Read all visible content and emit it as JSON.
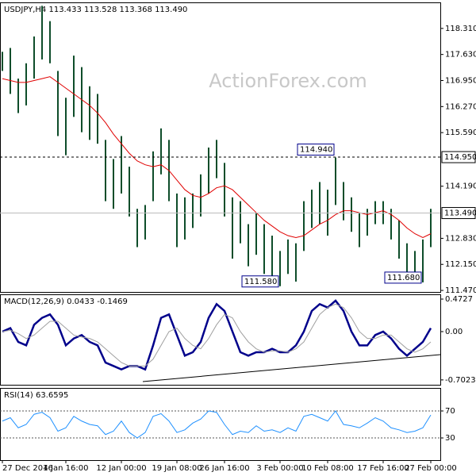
{
  "chart_data": [
    {
      "type": "ohlc",
      "header": "USDJPY,H4  113.433 113.528 113.368 113.490",
      "watermark": "ActionForex.com",
      "color": "#0e4d2a",
      "high": [
        117.7,
        117.8,
        117.0,
        117.4,
        118.1,
        118.9,
        118.5,
        117.2,
        116.5,
        117.6,
        117.3,
        116.8,
        116.6,
        115.4,
        114.9,
        115.5,
        114.7,
        113.6,
        113.7,
        115.1,
        115.7,
        115.4,
        114.0,
        113.9,
        114.0,
        114.5,
        115.2,
        115.4,
        114.8,
        113.9,
        113.8,
        113.2,
        113.5,
        113.2,
        112.9,
        112.5,
        112.8,
        112.7,
        113.8,
        114.1,
        114.3,
        114.1,
        114.94,
        114.3,
        113.9,
        113.5,
        113.6,
        113.8,
        113.8,
        113.6,
        113.3,
        112.7,
        112.5,
        112.8,
        113.6
      ],
      "low": [
        117.2,
        116.6,
        116.1,
        116.3,
        117.0,
        117.5,
        117.4,
        115.5,
        115.0,
        116.0,
        115.6,
        115.4,
        115.3,
        113.8,
        113.6,
        114.0,
        113.4,
        112.6,
        112.8,
        113.8,
        114.5,
        113.8,
        112.6,
        112.8,
        113.1,
        113.4,
        114.0,
        114.4,
        113.4,
        112.3,
        112.7,
        112.1,
        112.4,
        111.9,
        111.8,
        111.58,
        111.9,
        111.7,
        112.5,
        113.1,
        113.2,
        112.9,
        113.7,
        113.3,
        113.0,
        112.6,
        112.9,
        113.2,
        113.2,
        112.8,
        112.3,
        111.9,
        111.9,
        111.68,
        112.6
      ],
      "ma": {
        "color": "#e00000",
        "values": [
          117.0,
          116.95,
          116.9,
          116.9,
          116.95,
          117.0,
          117.05,
          116.9,
          116.75,
          116.6,
          116.45,
          116.3,
          116.1,
          115.85,
          115.55,
          115.3,
          115.05,
          114.85,
          114.75,
          114.7,
          114.75,
          114.6,
          114.35,
          114.1,
          113.95,
          113.9,
          114.0,
          114.15,
          114.2,
          114.1,
          113.9,
          113.7,
          113.5,
          113.3,
          113.15,
          113.0,
          112.9,
          112.85,
          112.9,
          113.05,
          113.2,
          113.3,
          113.45,
          113.55,
          113.55,
          113.5,
          113.45,
          113.5,
          113.55,
          113.45,
          113.3,
          113.1,
          112.95,
          112.85,
          112.95
        ]
      },
      "ylim": [
        111.43,
        118.99
      ],
      "yticks": [
        {
          "value": 118.31,
          "label": "118.310"
        },
        {
          "value": 117.63,
          "label": "117.630"
        },
        {
          "value": 116.95,
          "label": "116.950"
        },
        {
          "value": 116.27,
          "label": "116.270"
        },
        {
          "value": 115.59,
          "label": "115.590"
        },
        {
          "value": 114.19,
          "label": "114.190"
        },
        {
          "value": 112.83,
          "label": "112.830"
        },
        {
          "value": 112.15,
          "label": "112.150"
        },
        {
          "value": 111.47,
          "label": "111.470"
        }
      ],
      "levels": [
        {
          "value": 114.95,
          "label": "114.950",
          "style": "dashed"
        },
        {
          "value": 113.49,
          "label": "113.490",
          "style": "solid"
        }
      ],
      "point_labels": [
        {
          "bar": 42,
          "value": 114.94,
          "label": "114.940"
        },
        {
          "bar": 35,
          "value": 111.58,
          "label": "111.580"
        },
        {
          "bar": 53,
          "value": 111.68,
          "label": "111.680"
        }
      ]
    },
    {
      "type": "line",
      "header": "MACD(12,26,9) 0.0433 -0.1469",
      "series": [
        {
          "color": "#00008b",
          "values": [
            0.0,
            0.05,
            -0.15,
            -0.2,
            0.1,
            0.2,
            0.25,
            0.1,
            -0.2,
            -0.1,
            -0.05,
            -0.15,
            -0.2,
            -0.45,
            -0.5,
            -0.55,
            -0.5,
            -0.5,
            -0.55,
            -0.2,
            0.2,
            0.25,
            -0.05,
            -0.35,
            -0.3,
            -0.15,
            0.2,
            0.4,
            0.3,
            0.0,
            -0.3,
            -0.35,
            -0.3,
            -0.3,
            -0.25,
            -0.3,
            -0.3,
            -0.2,
            0.0,
            0.3,
            0.4,
            0.35,
            0.45,
            0.3,
            0.0,
            -0.2,
            -0.2,
            -0.05,
            0.0,
            -0.1,
            -0.25,
            -0.35,
            -0.25,
            -0.15,
            0.05
          ]
        },
        {
          "color": "#a0a0a0",
          "values": [
            0.0,
            0.02,
            -0.03,
            -0.1,
            -0.05,
            0.05,
            0.15,
            0.15,
            0.05,
            -0.05,
            -0.08,
            -0.1,
            -0.15,
            -0.25,
            -0.35,
            -0.45,
            -0.5,
            -0.5,
            -0.5,
            -0.4,
            -0.2,
            0.0,
            0.05,
            -0.1,
            -0.2,
            -0.25,
            -0.1,
            0.1,
            0.25,
            0.2,
            0.0,
            -0.15,
            -0.25,
            -0.3,
            -0.28,
            -0.28,
            -0.3,
            -0.25,
            -0.15,
            0.05,
            0.25,
            0.35,
            0.4,
            0.35,
            0.2,
            0.0,
            -0.1,
            -0.1,
            -0.05,
            -0.05,
            -0.15,
            -0.25,
            -0.3,
            -0.25,
            -0.15
          ]
        }
      ],
      "ylim": [
        -0.773,
        0.542
      ],
      "yticks": [
        0.4727,
        {
          "value": 0,
          "label": "0.00"
        },
        -0.7023
      ]
    },
    {
      "type": "line",
      "header": "RSI(14) 63.6595",
      "series": [
        {
          "color": "#1e90ff",
          "values": [
            55,
            60,
            45,
            50,
            65,
            68,
            60,
            40,
            45,
            62,
            55,
            50,
            48,
            35,
            40,
            55,
            38,
            30,
            38,
            62,
            66,
            55,
            38,
            42,
            52,
            58,
            70,
            68,
            50,
            35,
            40,
            38,
            48,
            40,
            42,
            38,
            45,
            40,
            62,
            65,
            60,
            55,
            70,
            50,
            48,
            45,
            52,
            60,
            55,
            45,
            42,
            38,
            40,
            45,
            64
          ]
        }
      ],
      "ylim": [
        -2.9,
        104.1
      ],
      "yticks": [
        70,
        30
      ],
      "categories": [
        "27 Dec 2016",
        null,
        null,
        null,
        null,
        null,
        null,
        null,
        "4 Jan 16:00",
        null,
        null,
        null,
        null,
        null,
        null,
        "12 Jan 00:00",
        null,
        null,
        null,
        null,
        null,
        null,
        "19 Jan 08:00",
        null,
        null,
        null,
        null,
        null,
        "26 Jan 16:00",
        null,
        null,
        null,
        null,
        null,
        null,
        "3 Feb 00:00",
        null,
        null,
        null,
        null,
        null,
        "10 Feb 08:00",
        null,
        null,
        null,
        null,
        null,
        null,
        "17 Feb 16:00",
        null,
        null,
        null,
        null,
        null,
        "27 Feb 00:00"
      ]
    }
  ]
}
